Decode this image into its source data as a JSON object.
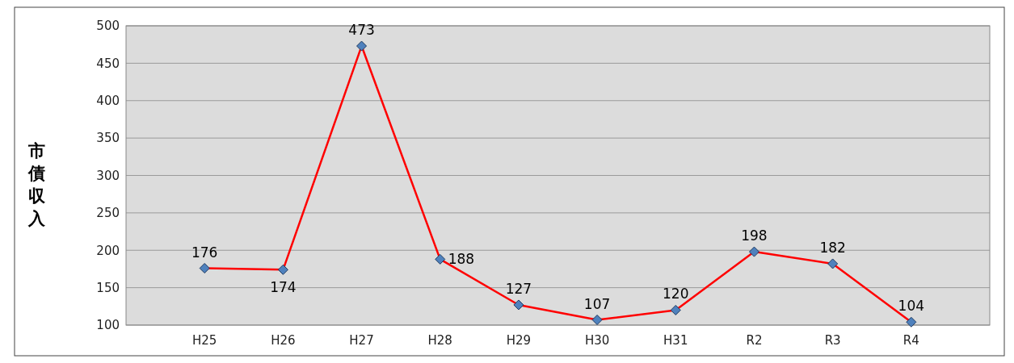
{
  "chart_data": {
    "type": "line",
    "ylabel": "市債収入",
    "categories": [
      "H25",
      "H26",
      "H27",
      "H28",
      "H29",
      "H30",
      "H31",
      "R2",
      "R3",
      "R4"
    ],
    "series": [
      {
        "color": "#ff0000",
        "values": [
          176,
          174,
          473,
          188,
          127,
          107,
          120,
          198,
          182,
          104
        ]
      }
    ],
    "ylim": [
      100,
      500
    ],
    "yticks": [
      100,
      150,
      200,
      250,
      300,
      350,
      400,
      450,
      500
    ],
    "grid": "y",
    "marker": "diamond",
    "line_style": "solid",
    "data_labels": true
  }
}
